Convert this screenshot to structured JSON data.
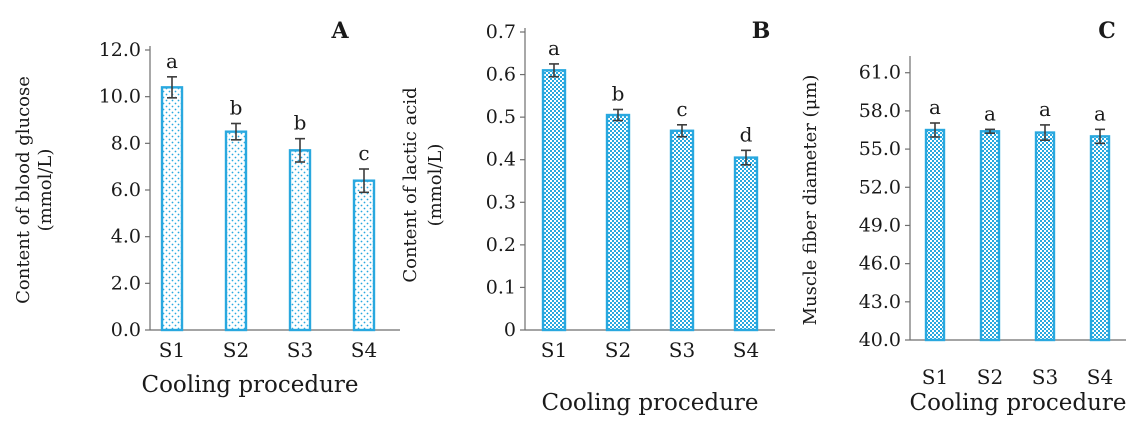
{
  "chart_data": [
    {
      "type": "bar",
      "panel_label": "A",
      "categories": [
        "S1",
        "S2",
        "S3",
        "S4"
      ],
      "values": [
        10.4,
        8.5,
        7.7,
        6.4
      ],
      "errors": [
        0.45,
        0.35,
        0.5,
        0.5
      ],
      "significance": [
        "a",
        "b",
        "b",
        "c"
      ],
      "xlabel": "Cooling procedure",
      "ylabel": [
        "Content of blood glucose",
        "(mmol/L)"
      ],
      "ylim": [
        0,
        12
      ],
      "yticks": [
        "0.0",
        "2.0",
        "4.0",
        "6.0",
        "8.0",
        "10.0",
        "12.0"
      ],
      "pattern": "dots",
      "grid": false
    },
    {
      "type": "bar",
      "panel_label": "B",
      "categories": [
        "S1",
        "S2",
        "S3",
        "S4"
      ],
      "values": [
        0.61,
        0.505,
        0.468,
        0.405
      ],
      "errors": [
        0.015,
        0.013,
        0.014,
        0.017
      ],
      "significance": [
        "a",
        "b",
        "c",
        "d"
      ],
      "xlabel": "Cooling procedure",
      "ylabel": [
        "Content of  lactic acid",
        "(mmol/L)"
      ],
      "ylim": [
        0,
        0.7
      ],
      "yticks": [
        "0",
        "0.1",
        "0.2",
        "0.3",
        "0.4",
        "0.5",
        "0.6",
        "0.7"
      ],
      "pattern": "checker",
      "grid": false
    },
    {
      "type": "bar",
      "panel_label": "C",
      "categories": [
        "S1",
        "S2",
        "S3",
        "S4"
      ],
      "values": [
        56.5,
        56.4,
        56.3,
        56.0
      ],
      "errors": [
        0.55,
        0.15,
        0.6,
        0.55
      ],
      "significance": [
        "a",
        "a",
        "a",
        "a"
      ],
      "xlabel": "Cooling procedure",
      "ylabel": [
        "Muscle fiber diameter (μm)"
      ],
      "ylim": [
        40,
        62
      ],
      "yticks": [
        "40.0",
        "43.0",
        "46.0",
        "49.0",
        "52.0",
        "55.0",
        "58.0",
        "61.0"
      ],
      "pattern": "checker",
      "grid": false
    }
  ],
  "colors": {
    "bar_outline": "#29a8df",
    "pattern_fill": "#29a8df",
    "axis": "#6e6e6e",
    "error_bar": "#3c3c3c",
    "text": "#1a1a1a"
  }
}
